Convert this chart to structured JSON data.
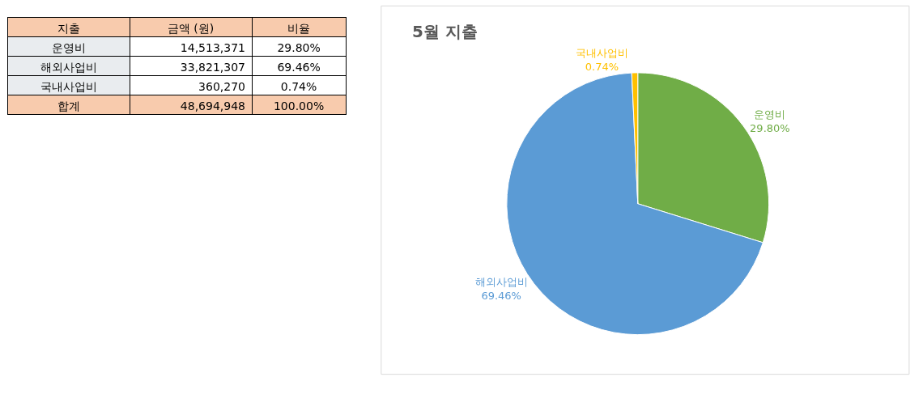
{
  "chart_data": [
    {
      "type": "other",
      "annotations": [
        "지출",
        "금액 (원)",
        "비율",
        "운영비",
        "14,513,371",
        "29.80%",
        "해외사업비",
        "33,821,307",
        "69.46%",
        "국내사업비",
        "360,270",
        "0.74%",
        "합계",
        "48,694,948",
        "100.00%"
      ]
    },
    {
      "type": "pie",
      "title": "5월 지출",
      "categories": [
        "운영비",
        "해외사업비",
        "국내사업비"
      ],
      "values": [
        29.8,
        69.46,
        0.74
      ],
      "colors": [
        "#70ad47",
        "#5b9bd5",
        "#ffc000"
      ],
      "value_labels": [
        "29.80%",
        "69.46%",
        "0.74%"
      ]
    }
  ]
}
